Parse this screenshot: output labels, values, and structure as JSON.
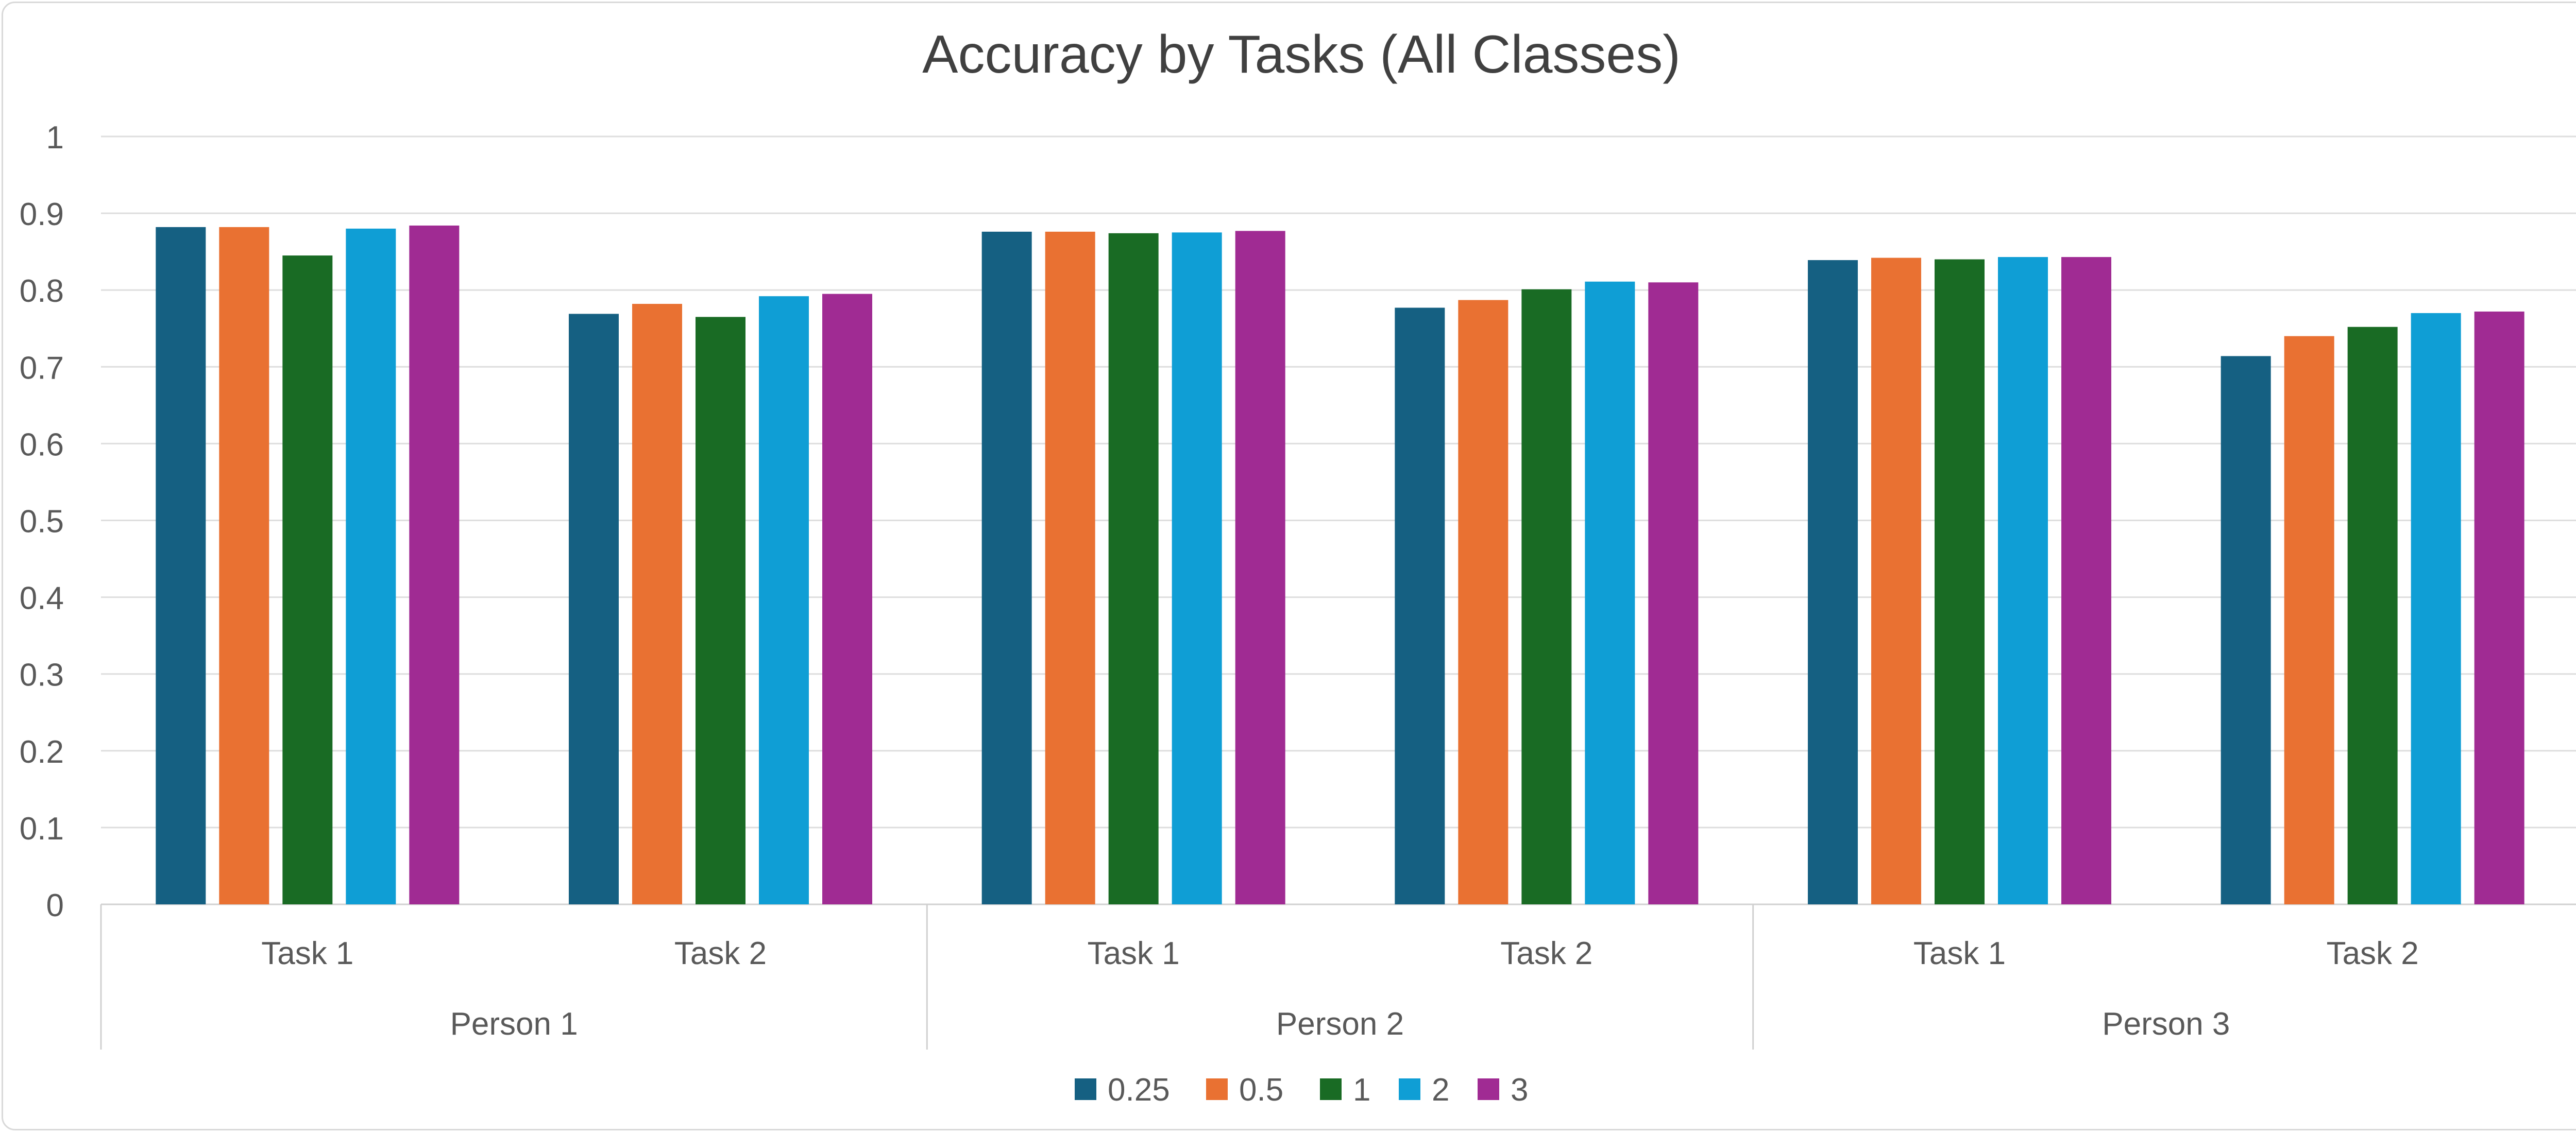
{
  "chart_data": {
    "type": "bar",
    "title": "Accuracy by Tasks (All Classes)",
    "xlabel": "",
    "ylabel": "",
    "ylim": [
      0,
      1
    ],
    "yticks": [
      "0",
      "0.1",
      "0.2",
      "0.3",
      "0.4",
      "0.5",
      "0.6",
      "0.7",
      "0.8",
      "0.9",
      "1"
    ],
    "grid": true,
    "legend_position": "bottom",
    "groups": [
      "Person 1",
      "Person 2",
      "Person 3"
    ],
    "categories": [
      "Task 1",
      "Task 2",
      "Task 1",
      "Task 2",
      "Task 1",
      "Task 2"
    ],
    "series": [
      {
        "name": "0.25",
        "color": "#156082",
        "values": [
          0.882,
          0.769,
          0.876,
          0.777,
          0.839,
          0.714
        ]
      },
      {
        "name": "0.5",
        "color": "#e97132",
        "values": [
          0.882,
          0.782,
          0.876,
          0.787,
          0.842,
          0.74
        ]
      },
      {
        "name": "1",
        "color": "#196b24",
        "values": [
          0.845,
          0.765,
          0.874,
          0.801,
          0.84,
          0.752
        ]
      },
      {
        "name": "2",
        "color": "#0f9ed5",
        "values": [
          0.88,
          0.792,
          0.875,
          0.811,
          0.843,
          0.77
        ]
      },
      {
        "name": "3",
        "color": "#a02b93",
        "values": [
          0.884,
          0.795,
          0.877,
          0.81,
          0.843,
          0.772
        ]
      }
    ]
  }
}
